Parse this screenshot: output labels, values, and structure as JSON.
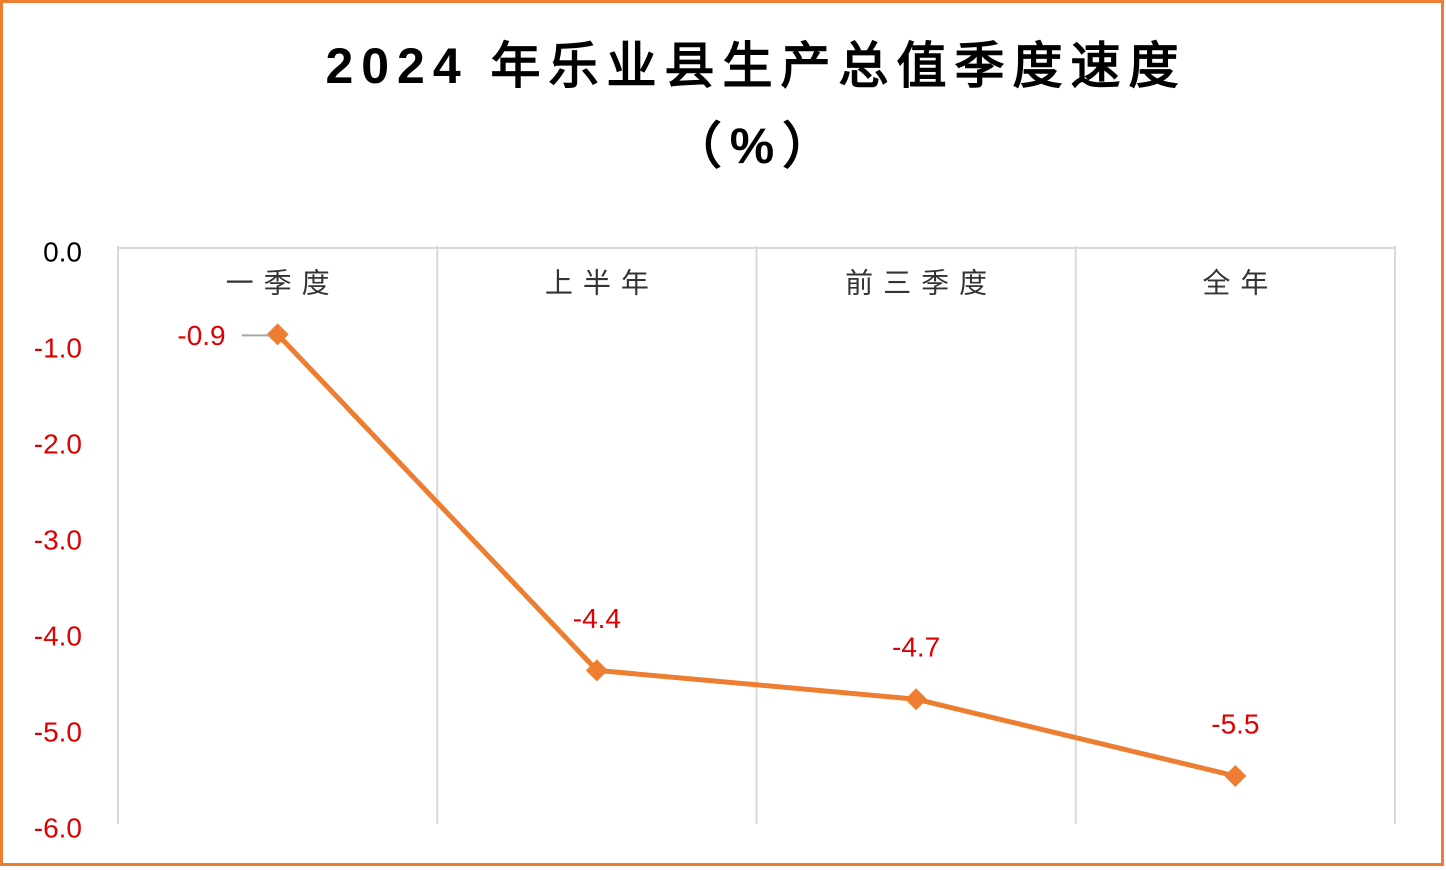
{
  "chart_data": {
    "type": "line",
    "title": "2024 年乐业县生产总值季度速度",
    "subtitle": "（%）",
    "categories": [
      "一季度",
      "上半年",
      "前三季度",
      "全年"
    ],
    "series": [
      {
        "name": "速度",
        "color": "#ED7D31",
        "values": [
          -0.9,
          -4.4,
          -4.7,
          -5.5
        ]
      }
    ],
    "ylim": [
      -6,
      0
    ],
    "yticks": [
      {
        "value": 0,
        "label": "0.0"
      },
      {
        "value": -1,
        "label": "-1.0"
      },
      {
        "value": -2,
        "label": "-2.0"
      },
      {
        "value": -3,
        "label": "-3.0"
      },
      {
        "value": -4,
        "label": "-4.0"
      },
      {
        "value": -5,
        "label": "-5.0"
      },
      {
        "value": -6,
        "label": "-6.0"
      }
    ],
    "grid": true
  }
}
